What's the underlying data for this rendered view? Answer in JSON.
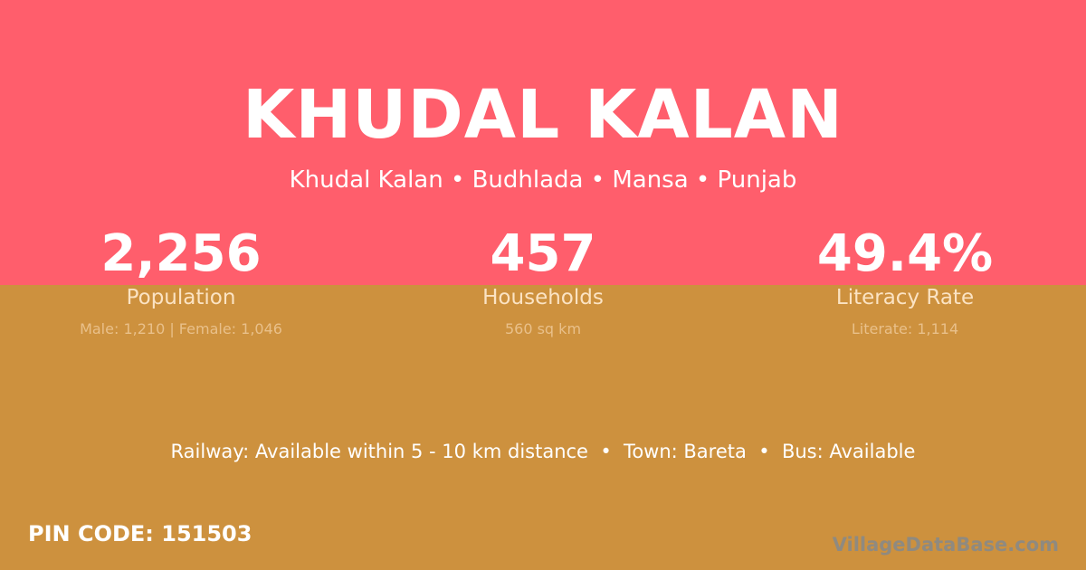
{
  "colors": {
    "top_bg": "#FF5E6C",
    "bottom_bg": "#CD913E"
  },
  "header": {
    "title": "KHUDAL KALAN",
    "subtitle": "Khudal Kalan • Budhlada • Mansa • Punjab"
  },
  "stats": [
    {
      "value": "2,256",
      "label": "Population",
      "detail": "Male: 1,210 | Female: 1,046"
    },
    {
      "value": "457",
      "label": "Households",
      "detail": "560 sq km"
    },
    {
      "value": "49.4%",
      "label": "Literacy Rate",
      "detail": "Literate: 1,114"
    }
  ],
  "transport": "Railway: Available within 5 - 10 km distance  •  Town: Bareta  •  Bus: Available",
  "pin_code": "PIN CODE: 151503",
  "brand": "VillageDataBase.com"
}
